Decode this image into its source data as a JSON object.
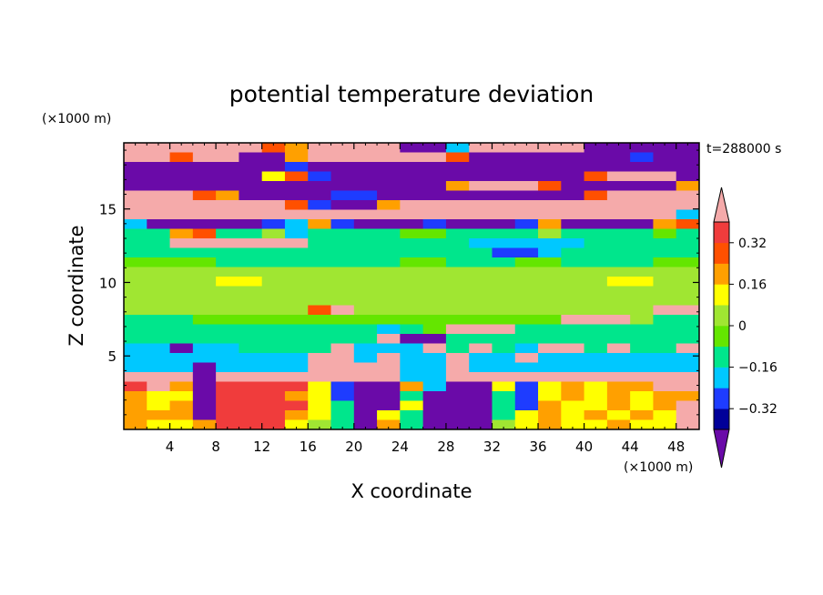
{
  "chart_data": {
    "type": "heatmap",
    "title": "potential temperature deviation",
    "xlabel": "X coordinate",
    "ylabel": "Z coordinate",
    "x_unit": "(×1000 m)",
    "y_unit": "(×1000 m)",
    "time_label": "t=288000 s",
    "xlim": [
      0,
      50
    ],
    "ylim": [
      0,
      19.5
    ],
    "x_ticks": [
      4,
      8,
      12,
      16,
      20,
      24,
      28,
      32,
      36,
      40,
      44,
      48
    ],
    "x_tick_labels": [
      "4",
      "8",
      "12",
      "16",
      "20",
      "24",
      "28",
      "32",
      "36",
      "40",
      "44",
      "48"
    ],
    "y_ticks": [
      5,
      10,
      15
    ],
    "y_tick_labels": [
      "5",
      "10",
      "15"
    ],
    "colorbar": {
      "levels": [
        -0.4,
        -0.32,
        -0.24,
        -0.16,
        -0.08,
        0,
        0.08,
        0.16,
        0.24,
        0.32,
        0.4
      ],
      "tick_values": [
        -0.32,
        -0.16,
        0,
        0.16,
        0.32
      ],
      "tick_labels": [
        "−0.32",
        "−0.16",
        "0",
        "0.16",
        "0.32"
      ],
      "colors": [
        "#000099",
        "#1e3cff",
        "#00c8ff",
        "#00e68c",
        "#64e600",
        "#a0e632",
        "#ffff00",
        "#ffa000",
        "#ff5000",
        "#f03c3c"
      ],
      "under_color": "#6a0aa8",
      "over_color": "#f5aaaa"
    },
    "z_rows": [
      [
        0.45,
        0.45,
        0.45,
        0.45,
        0.45,
        0.45,
        0.3,
        0.2,
        0.45,
        0.45,
        0.45,
        0.45,
        -0.45,
        -0.45,
        -0.2,
        0.45,
        0.45,
        0.45,
        0.45,
        0.45,
        -0.45,
        -0.45,
        -0.45,
        -0.45,
        -0.45
      ],
      [
        0.45,
        0.45,
        0.3,
        0.45,
        0.45,
        -0.45,
        -0.45,
        0.2,
        0.45,
        0.45,
        0.45,
        0.45,
        0.45,
        0.45,
        0.3,
        -0.45,
        -0.45,
        -0.45,
        -0.45,
        -0.45,
        -0.45,
        -0.45,
        -0.3,
        -0.45,
        -0.45
      ],
      [
        -0.45,
        -0.45,
        -0.45,
        -0.45,
        -0.45,
        -0.45,
        -0.45,
        -0.3,
        -0.45,
        -0.45,
        -0.45,
        -0.45,
        -0.45,
        -0.45,
        -0.45,
        -0.45,
        -0.45,
        -0.45,
        -0.45,
        -0.45,
        -0.45,
        -0.45,
        -0.45,
        -0.45,
        -0.45
      ],
      [
        -0.45,
        -0.45,
        -0.45,
        -0.45,
        -0.45,
        -0.45,
        0.1,
        0.3,
        -0.3,
        -0.45,
        -0.45,
        -0.45,
        -0.45,
        -0.45,
        -0.45,
        -0.45,
        -0.45,
        -0.45,
        -0.45,
        -0.45,
        0.3,
        0.45,
        0.45,
        0.45,
        -0.45
      ],
      [
        -0.45,
        -0.45,
        -0.45,
        -0.45,
        -0.45,
        -0.45,
        -0.45,
        -0.45,
        -0.45,
        -0.45,
        -0.45,
        -0.45,
        -0.45,
        -0.45,
        0.2,
        0.45,
        0.45,
        0.45,
        0.3,
        -0.45,
        -0.45,
        -0.45,
        -0.45,
        -0.45,
        0.2
      ],
      [
        0.45,
        0.45,
        0.45,
        0.3,
        0.2,
        -0.45,
        -0.45,
        -0.45,
        -0.45,
        -0.3,
        -0.3,
        -0.45,
        -0.45,
        -0.45,
        -0.45,
        -0.45,
        -0.45,
        -0.45,
        -0.45,
        -0.45,
        0.3,
        0.45,
        0.45,
        0.45,
        0.45
      ],
      [
        0.45,
        0.45,
        0.45,
        0.45,
        0.45,
        0.45,
        0.45,
        0.3,
        -0.3,
        -0.45,
        -0.45,
        0.2,
        0.45,
        0.45,
        0.45,
        0.45,
        0.45,
        0.45,
        0.45,
        0.45,
        0.45,
        0.45,
        0.45,
        0.45,
        0.45
      ],
      [
        0.45,
        0.45,
        0.45,
        0.45,
        0.45,
        0.45,
        0.45,
        0.45,
        0.45,
        0.45,
        0.45,
        0.45,
        0.45,
        0.45,
        0.45,
        0.45,
        0.45,
        0.45,
        0.45,
        0.45,
        0.45,
        0.45,
        0.45,
        0.45,
        -0.2
      ],
      [
        -0.2,
        -0.45,
        -0.45,
        -0.45,
        -0.45,
        -0.45,
        -0.3,
        -0.2,
        0.2,
        -0.3,
        -0.45,
        -0.45,
        -0.45,
        -0.3,
        -0.45,
        -0.45,
        -0.45,
        -0.3,
        0.2,
        -0.45,
        -0.45,
        -0.45,
        -0.45,
        0.2,
        0.3
      ],
      [
        -0.1,
        -0.1,
        0.2,
        0.3,
        -0.1,
        -0.1,
        0.0,
        -0.2,
        -0.1,
        -0.1,
        -0.1,
        -0.1,
        -0.05,
        -0.05,
        -0.1,
        -0.1,
        -0.1,
        -0.1,
        0.0,
        -0.1,
        -0.1,
        -0.1,
        -0.1,
        -0.05,
        -0.1
      ],
      [
        -0.1,
        -0.1,
        0.45,
        0.45,
        0.45,
        0.45,
        0.45,
        0.45,
        -0.1,
        -0.1,
        -0.1,
        -0.1,
        -0.1,
        -0.1,
        -0.1,
        -0.2,
        -0.2,
        -0.2,
        -0.2,
        -0.2,
        -0.1,
        -0.1,
        -0.1,
        -0.1,
        -0.1
      ],
      [
        -0.1,
        -0.1,
        -0.1,
        -0.1,
        -0.1,
        -0.1,
        -0.1,
        -0.1,
        -0.1,
        -0.1,
        -0.1,
        -0.1,
        -0.15,
        -0.1,
        -0.1,
        -0.15,
        -0.25,
        -0.25,
        -0.2,
        -0.15,
        -0.1,
        -0.1,
        -0.15,
        -0.1,
        -0.1
      ],
      [
        -0.05,
        -0.05,
        -0.05,
        -0.05,
        -0.1,
        -0.1,
        -0.1,
        -0.1,
        -0.1,
        -0.1,
        -0.1,
        -0.1,
        -0.05,
        -0.05,
        -0.1,
        -0.1,
        -0.1,
        -0.05,
        -0.05,
        -0.1,
        -0.1,
        -0.1,
        -0.1,
        -0.05,
        -0.05
      ],
      [
        0.05,
        0.05,
        0.05,
        0.05,
        0.05,
        0.05,
        0.05,
        0.05,
        0.05,
        0.05,
        0.05,
        0.05,
        0.05,
        0.05,
        0.05,
        0.05,
        0.05,
        0.05,
        0.05,
        0.05,
        0.05,
        0.05,
        0.05,
        0.05,
        0.05
      ],
      [
        0.05,
        0.05,
        0.05,
        0.05,
        0.1,
        0.1,
        0.05,
        0.05,
        0.05,
        0.05,
        0.05,
        0.05,
        0.05,
        0.05,
        0.05,
        0.05,
        0.05,
        0.05,
        0.05,
        0.05,
        0.05,
        0.1,
        0.1,
        0.05,
        0.05
      ],
      [
        0.05,
        0.05,
        0.05,
        0.05,
        0.05,
        0.05,
        0.05,
        0.05,
        0.05,
        0.05,
        0.05,
        0.05,
        0.05,
        0.05,
        0.05,
        0.05,
        0.05,
        0.05,
        0.05,
        0.05,
        0.05,
        0.05,
        0.05,
        0.05,
        0.05
      ],
      [
        0.05,
        0.05,
        0.05,
        0.05,
        0.05,
        0.05,
        0.05,
        0.05,
        0.05,
        0.05,
        0.05,
        0.05,
        0.05,
        0.05,
        0.05,
        0.05,
        0.05,
        0.05,
        0.05,
        0.05,
        0.05,
        0.05,
        0.05,
        0.05,
        0.05
      ],
      [
        0.0,
        0.0,
        0.0,
        0.0,
        0.0,
        0.0,
        0.0,
        0.0,
        0.3,
        0.45,
        0.0,
        0.0,
        0.0,
        0.0,
        0.0,
        0.0,
        0.0,
        0.0,
        0.0,
        0.0,
        0.0,
        0.0,
        0.0,
        0.45,
        0.45
      ],
      [
        -0.1,
        -0.1,
        -0.1,
        -0.05,
        -0.05,
        -0.05,
        -0.05,
        -0.05,
        -0.05,
        -0.05,
        -0.05,
        -0.05,
        -0.05,
        -0.05,
        -0.05,
        -0.05,
        -0.05,
        -0.05,
        -0.05,
        0.45,
        0.45,
        0.45,
        0.0,
        -0.1,
        -0.1
      ],
      [
        -0.1,
        -0.1,
        -0.1,
        -0.1,
        -0.1,
        -0.1,
        -0.1,
        -0.1,
        -0.1,
        -0.1,
        -0.1,
        -0.2,
        -0.1,
        -0.05,
        0.45,
        0.45,
        0.45,
        -0.1,
        -0.1,
        -0.1,
        -0.1,
        -0.1,
        -0.1,
        -0.1,
        -0.1
      ],
      [
        -0.1,
        -0.1,
        -0.1,
        -0.1,
        -0.1,
        -0.1,
        -0.1,
        -0.1,
        -0.1,
        -0.1,
        -0.1,
        0.45,
        -0.45,
        -0.45,
        -0.1,
        -0.1,
        -0.1,
        -0.1,
        -0.1,
        -0.1,
        -0.1,
        -0.1,
        -0.1,
        -0.1,
        -0.1
      ],
      [
        -0.2,
        -0.2,
        -0.45,
        -0.2,
        -0.2,
        -0.1,
        -0.1,
        -0.1,
        -0.1,
        0.45,
        -0.2,
        -0.2,
        -0.2,
        0.45,
        -0.1,
        0.45,
        -0.1,
        -0.2,
        0.45,
        0.45,
        -0.1,
        0.45,
        -0.1,
        -0.1,
        0.45
      ],
      [
        -0.2,
        -0.2,
        -0.2,
        -0.2,
        -0.2,
        -0.2,
        -0.2,
        -0.2,
        0.45,
        0.45,
        -0.2,
        0.45,
        -0.2,
        -0.2,
        0.45,
        -0.2,
        -0.2,
        0.45,
        -0.2,
        -0.2,
        -0.2,
        -0.2,
        -0.2,
        -0.2,
        -0.2
      ],
      [
        -0.2,
        -0.2,
        -0.2,
        -0.45,
        -0.2,
        -0.2,
        -0.2,
        -0.2,
        0.45,
        0.45,
        0.45,
        0.45,
        -0.2,
        -0.2,
        0.45,
        -0.2,
        -0.2,
        -0.2,
        -0.2,
        -0.2,
        -0.2,
        -0.2,
        -0.2,
        -0.2,
        -0.2
      ],
      [
        0.45,
        0.45,
        0.45,
        -0.45,
        0.45,
        0.45,
        0.45,
        0.45,
        0.45,
        0.45,
        0.45,
        0.45,
        -0.2,
        -0.2,
        0.45,
        0.45,
        0.45,
        0.45,
        0.45,
        0.45,
        0.45,
        0.45,
        0.45,
        0.45,
        0.45
      ],
      [
        0.35,
        0.45,
        0.2,
        -0.45,
        0.35,
        0.35,
        0.35,
        0.35,
        0.1,
        -0.3,
        -0.45,
        -0.45,
        0.2,
        -0.2,
        -0.45,
        -0.45,
        0.1,
        -0.3,
        0.1,
        0.2,
        0.1,
        0.2,
        0.2,
        0.45,
        0.45
      ],
      [
        0.2,
        0.1,
        0.1,
        -0.45,
        0.35,
        0.35,
        0.35,
        0.2,
        0.1,
        -0.3,
        -0.45,
        -0.45,
        -0.1,
        -0.45,
        -0.45,
        -0.45,
        -0.1,
        -0.3,
        0.1,
        0.2,
        0.1,
        0.2,
        0.1,
        0.2,
        0.2
      ],
      [
        0.2,
        0.1,
        0.2,
        -0.45,
        0.35,
        0.35,
        0.35,
        0.35,
        0.1,
        -0.1,
        -0.45,
        -0.45,
        0.1,
        -0.45,
        -0.45,
        -0.45,
        -0.1,
        -0.3,
        0.2,
        0.1,
        0.1,
        0.2,
        0.1,
        0.2,
        0.45
      ],
      [
        0.2,
        0.2,
        0.2,
        -0.45,
        0.35,
        0.35,
        0.35,
        0.2,
        0.1,
        -0.1,
        -0.45,
        0.1,
        -0.1,
        -0.45,
        -0.45,
        -0.45,
        -0.1,
        0.1,
        0.2,
        0.1,
        0.2,
        0.1,
        0.2,
        0.1,
        0.45
      ],
      [
        0.2,
        0.1,
        0.1,
        0.2,
        0.35,
        0.35,
        0.35,
        0.1,
        0.0,
        -0.1,
        -0.45,
        0.2,
        -0.1,
        -0.45,
        -0.45,
        -0.45,
        0.0,
        0.1,
        0.2,
        0.1,
        0.1,
        0.2,
        0.1,
        0.1,
        0.45
      ]
    ]
  }
}
